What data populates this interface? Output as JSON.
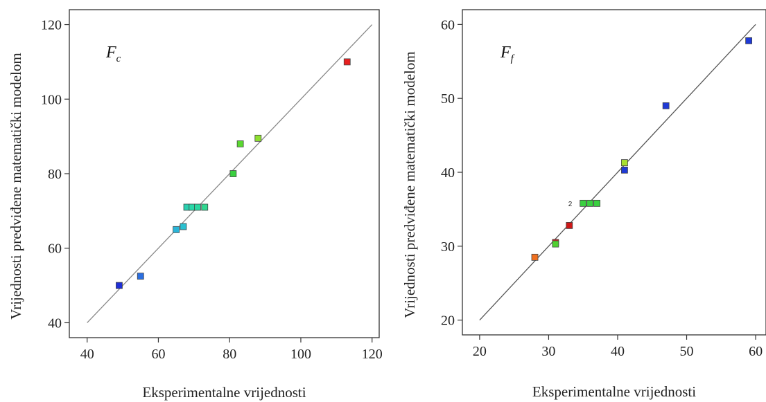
{
  "chart_data": [
    {
      "type": "scatter",
      "panel_label": {
        "main": "F",
        "sub": "c"
      },
      "xlabel": "Eksperimentalne vrijednosti",
      "ylabel": "Vrijednosti predviđene matematički modelom",
      "xlim": [
        35,
        122
      ],
      "ylim": [
        36,
        124
      ],
      "xticks": [
        40,
        60,
        80,
        100,
        120
      ],
      "yticks": [
        40,
        60,
        80,
        100,
        120
      ],
      "reference_line": {
        "x": [
          40,
          120
        ],
        "y": [
          40,
          120
        ],
        "color": "#888888"
      },
      "grid": false,
      "points": [
        {
          "x": 49,
          "y": 50,
          "color": "#1f2fd6"
        },
        {
          "x": 55,
          "y": 52.5,
          "color": "#2b6fe0"
        },
        {
          "x": 65,
          "y": 65,
          "color": "#2ab5d8"
        },
        {
          "x": 67,
          "y": 65.8,
          "color": "#2ac0d0"
        },
        {
          "x": 68,
          "y": 71,
          "color": "#2ad0b0"
        },
        {
          "x": 69.5,
          "y": 71,
          "color": "#2ad8a8"
        },
        {
          "x": 71,
          "y": 71,
          "color": "#2ad8a0"
        },
        {
          "x": 73,
          "y": 71,
          "color": "#30d890"
        },
        {
          "x": 81,
          "y": 80,
          "color": "#3ad040"
        },
        {
          "x": 83,
          "y": 88,
          "color": "#5ad830"
        },
        {
          "x": 88,
          "y": 89.5,
          "color": "#8ee030"
        },
        {
          "x": 113,
          "y": 110,
          "color": "#e82020"
        }
      ]
    },
    {
      "type": "scatter",
      "panel_label": {
        "main": "F",
        "sub": "f"
      },
      "xlabel": "Eksperimentalne vrijednosti",
      "ylabel": "Vrijednosti predviđene matematički modelom",
      "xlim": [
        17.5,
        61.5
      ],
      "ylim": [
        18,
        62
      ],
      "xticks": [
        20,
        30,
        40,
        50,
        60
      ],
      "yticks": [
        20,
        30,
        40,
        50,
        60
      ],
      "reference_line": {
        "x": [
          20,
          60
        ],
        "y": [
          20,
          60
        ],
        "color": "#555555"
      },
      "grid": false,
      "annotation": {
        "text": "2",
        "x": 33.8,
        "y": 35.8
      },
      "points": [
        {
          "x": 28,
          "y": 28.5,
          "color": "#f07020"
        },
        {
          "x": 31,
          "y": 30.5,
          "color": "#cc2020"
        },
        {
          "x": 31,
          "y": 30.3,
          "color": "#50d030"
        },
        {
          "x": 33,
          "y": 32.8,
          "color": "#cc1818"
        },
        {
          "x": 35,
          "y": 35.8,
          "color": "#3ad040"
        },
        {
          "x": 36,
          "y": 35.8,
          "color": "#3ad040"
        },
        {
          "x": 37,
          "y": 35.8,
          "color": "#3ad040"
        },
        {
          "x": 41,
          "y": 41.3,
          "color": "#a8e030"
        },
        {
          "x": 41,
          "y": 40.3,
          "color": "#1f3ad6"
        },
        {
          "x": 47,
          "y": 49,
          "color": "#1f3ad6"
        },
        {
          "x": 59,
          "y": 57.8,
          "color": "#1f3ad6"
        }
      ]
    }
  ]
}
